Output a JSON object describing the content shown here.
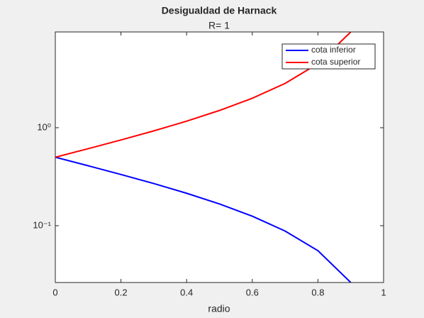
{
  "chart_data": {
    "type": "line",
    "title": "Desigualdad de Harnack",
    "subtitle": "R= 1",
    "x_label": "radio",
    "x": [
      0,
      0.1,
      0.2,
      0.3,
      0.4,
      0.5,
      0.6,
      0.7,
      0.8,
      0.9
    ],
    "series": [
      {
        "name": "cota inferior",
        "color": "#0000ff",
        "values": [
          0.5,
          0.4091,
          0.3333,
          0.2692,
          0.2143,
          0.1667,
          0.125,
          0.0882,
          0.0556,
          0.0263
        ]
      },
      {
        "name": "cota superior",
        "color": "#ff0000",
        "values": [
          0.5,
          0.6111,
          0.75,
          0.9286,
          1.1667,
          1.5,
          2.0,
          2.8333,
          4.5,
          9.5
        ]
      }
    ],
    "xlim": [
      0,
      1
    ],
    "xticks": [
      0,
      0.2,
      0.4,
      0.6,
      0.8,
      1
    ],
    "ylim": [
      0.0263,
      9.5
    ],
    "y_scale": "log",
    "yticks": [
      {
        "value": 0.1,
        "label": "10⁻¹"
      },
      {
        "value": 1,
        "label": "10⁰"
      }
    ],
    "legend_position": "top-right"
  }
}
